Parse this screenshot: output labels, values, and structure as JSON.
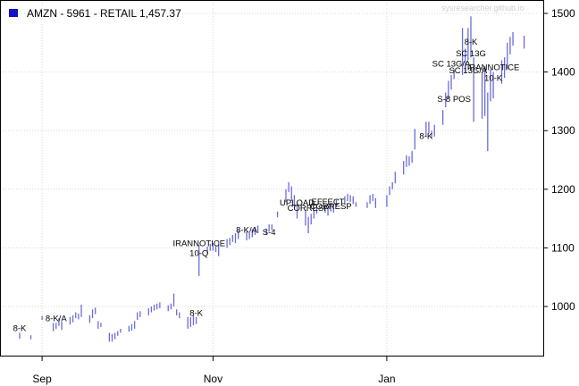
{
  "legend": {
    "label": "AMZN - 5961 - RETAIL 1,457.37",
    "color": "#1010c8"
  },
  "watermark": "sysresearcher.github.io",
  "chart_data": {
    "type": "ohlc",
    "title": "AMZN - 5961 - RETAIL 1,457.37",
    "series_color": "#6b6bdc",
    "grid": true,
    "ylim": [
      925,
      1510
    ],
    "y_ticks": [
      1000,
      1100,
      1200,
      1300,
      1400,
      1500
    ],
    "x_ticks": [
      {
        "label": "Sep",
        "date": "2017-09-01"
      },
      {
        "label": "Nov",
        "date": "2017-11-01"
      },
      {
        "label": "Jan",
        "date": "2018-01-02"
      }
    ],
    "x_range": [
      "2017-08-24",
      "2018-02-23"
    ],
    "bars": [
      [
        "2017-08-24",
        945,
        955
      ],
      [
        "2017-08-28",
        944,
        951
      ],
      [
        "2017-09-01",
        977,
        984
      ],
      [
        "2017-09-05",
        958,
        972
      ],
      [
        "2017-09-06",
        962,
        972
      ],
      [
        "2017-09-07",
        967,
        980
      ],
      [
        "2017-09-08",
        960,
        974
      ],
      [
        "2017-09-11",
        969,
        982
      ],
      [
        "2017-09-12",
        973,
        985
      ],
      [
        "2017-09-13",
        980,
        990
      ],
      [
        "2017-09-14",
        978,
        988
      ],
      [
        "2017-09-15",
        982,
        1003
      ],
      [
        "2017-09-18",
        972,
        985
      ],
      [
        "2017-09-19",
        980,
        995
      ],
      [
        "2017-09-20",
        987,
        998
      ],
      [
        "2017-09-21",
        962,
        975
      ],
      [
        "2017-09-22",
        965,
        972
      ],
      [
        "2017-09-25",
        940,
        955
      ],
      [
        "2017-09-26",
        940,
        953
      ],
      [
        "2017-09-27",
        944,
        955
      ],
      [
        "2017-09-28",
        950,
        958
      ],
      [
        "2017-09-29",
        955,
        962
      ],
      [
        "2017-10-02",
        957,
        967
      ],
      [
        "2017-10-03",
        959,
        970
      ],
      [
        "2017-10-04",
        962,
        975
      ],
      [
        "2017-10-05",
        977,
        990
      ],
      [
        "2017-10-06",
        982,
        992
      ],
      [
        "2017-10-09",
        985,
        997
      ],
      [
        "2017-10-10",
        990,
        1000
      ],
      [
        "2017-10-11",
        993,
        1003
      ],
      [
        "2017-10-12",
        995,
        1005
      ],
      [
        "2017-10-13",
        997,
        1007
      ],
      [
        "2017-10-16",
        992,
        1002
      ],
      [
        "2017-10-17",
        995,
        1005
      ],
      [
        "2017-10-18",
        1000,
        1022
      ],
      [
        "2017-10-19",
        985,
        995
      ],
      [
        "2017-10-20",
        980,
        990
      ],
      [
        "2017-10-23",
        962,
        982
      ],
      [
        "2017-10-24",
        965,
        982
      ],
      [
        "2017-10-25",
        968,
        985
      ],
      [
        "2017-10-26",
        970,
        982
      ],
      [
        "2017-10-27",
        1052,
        1105
      ],
      [
        "2017-10-30",
        1090,
        1102
      ],
      [
        "2017-10-31",
        1095,
        1107
      ],
      [
        "2017-11-01",
        1095,
        1108
      ],
      [
        "2017-11-02",
        1093,
        1103
      ],
      [
        "2017-11-03",
        1086,
        1110
      ],
      [
        "2017-11-06",
        1100,
        1115
      ],
      [
        "2017-11-07",
        1105,
        1117
      ],
      [
        "2017-11-08",
        1110,
        1122
      ],
      [
        "2017-11-09",
        1108,
        1125
      ],
      [
        "2017-11-10",
        1115,
        1130
      ],
      [
        "2017-11-13",
        1113,
        1128
      ],
      [
        "2017-11-14",
        1115,
        1125
      ],
      [
        "2017-11-15",
        1118,
        1132
      ],
      [
        "2017-11-16",
        1122,
        1135
      ],
      [
        "2017-11-17",
        1125,
        1138
      ],
      [
        "2017-11-20",
        1122,
        1133
      ],
      [
        "2017-11-21",
        1128,
        1140
      ],
      [
        "2017-11-22",
        1130,
        1140
      ],
      [
        "2017-11-24",
        1152,
        1162
      ],
      [
        "2017-11-27",
        1178,
        1200
      ],
      [
        "2017-11-28",
        1195,
        1212
      ],
      [
        "2017-11-29",
        1180,
        1205
      ],
      [
        "2017-11-30",
        1170,
        1190
      ],
      [
        "2017-12-01",
        1150,
        1175
      ],
      [
        "2017-12-04",
        1138,
        1165
      ],
      [
        "2017-12-05",
        1125,
        1153
      ],
      [
        "2017-12-06",
        1140,
        1158
      ],
      [
        "2017-12-07",
        1150,
        1163
      ],
      [
        "2017-12-08",
        1158,
        1168
      ],
      [
        "2017-12-11",
        1160,
        1172
      ],
      [
        "2017-12-12",
        1155,
        1168
      ],
      [
        "2017-12-13",
        1162,
        1175
      ],
      [
        "2017-12-14",
        1160,
        1174
      ],
      [
        "2017-12-15",
        1170,
        1182
      ],
      [
        "2017-12-18",
        1175,
        1188
      ],
      [
        "2017-12-19",
        1180,
        1192
      ],
      [
        "2017-12-20",
        1178,
        1190
      ],
      [
        "2017-12-21",
        1175,
        1188
      ],
      [
        "2017-12-22",
        1170,
        1178
      ],
      [
        "2017-12-26",
        1168,
        1178
      ],
      [
        "2017-12-27",
        1175,
        1190
      ],
      [
        "2017-12-28",
        1180,
        1192
      ],
      [
        "2017-12-29",
        1168,
        1185
      ],
      [
        "2018-01-02",
        1170,
        1190
      ],
      [
        "2018-01-03",
        1190,
        1205
      ],
      [
        "2018-01-04",
        1200,
        1212
      ],
      [
        "2018-01-05",
        1210,
        1230
      ],
      [
        "2018-01-08",
        1225,
        1248
      ],
      [
        "2018-01-09",
        1238,
        1258
      ],
      [
        "2018-01-10",
        1240,
        1256
      ],
      [
        "2018-01-11",
        1245,
        1265
      ],
      [
        "2018-01-12",
        1268,
        1303
      ],
      [
        "2018-01-16",
        1290,
        1315
      ],
      [
        "2018-01-17",
        1295,
        1315
      ],
      [
        "2018-01-18",
        1288,
        1300
      ],
      [
        "2018-01-19",
        1290,
        1310
      ],
      [
        "2018-01-22",
        1310,
        1335
      ],
      [
        "2018-01-23",
        1340,
        1365
      ],
      [
        "2018-01-24",
        1355,
        1385
      ],
      [
        "2018-01-25",
        1370,
        1395
      ],
      [
        "2018-01-26",
        1388,
        1405
      ],
      [
        "2018-01-29",
        1395,
        1475
      ],
      [
        "2018-01-30",
        1400,
        1440
      ],
      [
        "2018-01-31",
        1420,
        1475
      ],
      [
        "2018-02-01",
        1425,
        1495
      ],
      [
        "2018-02-02",
        1315,
        1425
      ],
      [
        "2018-02-05",
        1320,
        1400
      ],
      [
        "2018-02-06",
        1325,
        1410
      ],
      [
        "2018-02-07",
        1265,
        1365
      ],
      [
        "2018-02-08",
        1350,
        1405
      ],
      [
        "2018-02-09",
        1355,
        1400
      ],
      [
        "2018-02-12",
        1380,
        1420
      ],
      [
        "2018-02-13",
        1390,
        1425
      ],
      [
        "2018-02-14",
        1405,
        1450
      ],
      [
        "2018-02-15",
        1430,
        1460
      ],
      [
        "2018-02-16",
        1445,
        1468
      ],
      [
        "2018-02-20",
        1440,
        1462
      ]
    ],
    "annotations": [
      {
        "text": "8-K",
        "date": "2017-08-24",
        "price": 958
      },
      {
        "text": "8-K/A",
        "date": "2017-09-06",
        "price": 975
      },
      {
        "text": "8-K",
        "date": "2017-10-26",
        "price": 984
      },
      {
        "text": "IRANNOTICE",
        "date": "2017-10-27",
        "price": 1103
      },
      {
        "text": "10-Q",
        "date": "2017-10-27",
        "price": 1086
      },
      {
        "text": "8-K/A",
        "date": "2017-11-13",
        "price": 1126
      },
      {
        "text": "S-4",
        "date": "2017-11-21",
        "price": 1122
      },
      {
        "text": "UPLOAD",
        "date": "2017-12-01",
        "price": 1172
      },
      {
        "text": "CORRESP",
        "date": "2017-12-05",
        "price": 1163
      },
      {
        "text": "EFFECT",
        "date": "2017-12-12",
        "price": 1174
      },
      {
        "text": "CORRESP",
        "date": "2017-12-13",
        "price": 1166
      },
      {
        "text": "8-K",
        "date": "2018-01-16",
        "price": 1286
      },
      {
        "text": "S-8 POS",
        "date": "2018-01-26",
        "price": 1349
      },
      {
        "text": "SC 13G/A",
        "date": "2018-01-25",
        "price": 1409
      },
      {
        "text": "SC 13G/A",
        "date": "2018-01-31",
        "price": 1398
      },
      {
        "text": "SC 13G",
        "date": "2018-02-01",
        "price": 1427
      },
      {
        "text": "8-K",
        "date": "2018-02-01",
        "price": 1447
      },
      {
        "text": "IRANNOTICE",
        "date": "2018-02-09",
        "price": 1403
      },
      {
        "text": "10-K",
        "date": "2018-02-09",
        "price": 1385
      }
    ]
  }
}
